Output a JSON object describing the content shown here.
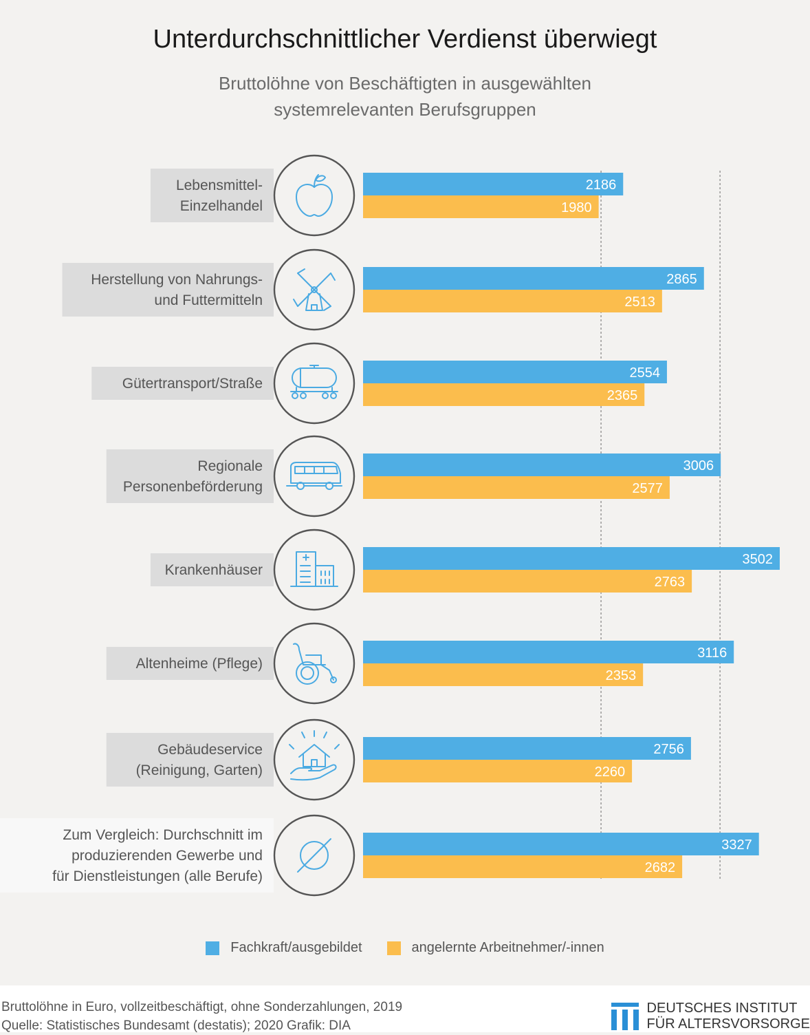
{
  "title": "Unterdurchschnittlicher Verdienst überwiegt",
  "subtitle_line1": "Bruttolöhne von Beschäftigten in ausgewählten",
  "subtitle_line2": "systemrelevanten Berufsgruppen",
  "colors": {
    "skilled": "#4faee4",
    "semiskilled": "#fbbd4d",
    "label_bg": "#dcdcdc",
    "label_bg_highlight": "#f8f8f8",
    "icon": "#4aaae2"
  },
  "legend": {
    "skilled": "Fachkraft/ausgebildet",
    "semiskilled": "angelernte Arbeitnehmer/-innen"
  },
  "chart_data": {
    "type": "bar",
    "orientation": "horizontal",
    "categories": [
      [
        "Lebensmittel-",
        "Einzelhandel"
      ],
      [
        "Herstellung von Nahrungs-",
        "und Futtermitteln"
      ],
      [
        "Gütertransport/Straße"
      ],
      [
        "Regionale",
        "Personenbeförderung"
      ],
      [
        "Krankenhäuser"
      ],
      [
        "Altenheime (Pflege)"
      ],
      [
        "Gebäudeservice",
        "(Reinigung, Garten)"
      ],
      [
        "Zum Vergleich: Durchschnitt im",
        "produzierenden Gewerbe und",
        "für Dienstleistungen (alle Berufe)"
      ]
    ],
    "icons": [
      "apple-icon",
      "windmill-icon",
      "tank-truck-icon",
      "bus-icon",
      "hospital-icon",
      "wheelchair-icon",
      "house-in-hand-icon",
      "average-icon"
    ],
    "series": [
      {
        "name": "Fachkraft/ausgebildet",
        "values": [
          2186,
          2865,
          2554,
          3006,
          3502,
          3116,
          2756,
          3327
        ]
      },
      {
        "name": "angelernte Arbeitnehmer/-innen",
        "values": [
          1980,
          2513,
          2365,
          2577,
          2763,
          2353,
          2260,
          2682
        ]
      }
    ],
    "reference_lines": [
      2000,
      3000
    ],
    "xlim": [
      0,
      3502
    ]
  },
  "footer": {
    "note": "Bruttolöhne in Euro, vollzeitbeschäftigt, ohne Sonderzahlungen, 2019",
    "source": "Quelle: Statistisches Bundesamt (destatis); 2020  Grafik: DIA",
    "logo_line1": "DEUTSCHES INSTITUT",
    "logo_line2": "FÜR ALTERSVORSORGE"
  }
}
